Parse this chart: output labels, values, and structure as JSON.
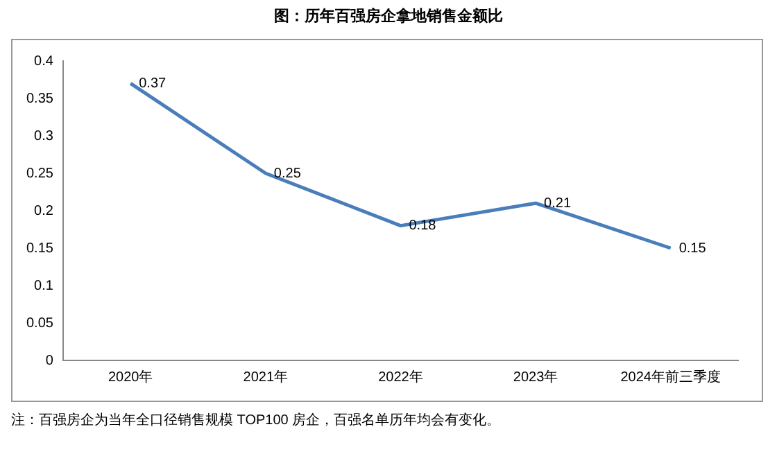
{
  "chart_data": {
    "type": "line",
    "title": "图：历年百强房企拿地销售金额比",
    "categories": [
      "2020年",
      "2021年",
      "2022年",
      "2023年",
      "2024年前三季度"
    ],
    "series": [
      {
        "color": "#4a7ebb",
        "values": [
          0.37,
          0.25,
          0.18,
          0.21,
          0.15
        ]
      }
    ],
    "ylim": [
      0,
      0.4
    ],
    "yticks": [
      0,
      0.05,
      0.1,
      0.15,
      0.2,
      0.25,
      0.3,
      0.35,
      0.4
    ],
    "grid": false,
    "legend": false,
    "marker": "none",
    "line_style": "solid",
    "data_labels": true,
    "annotations": [
      "注：百强房企为当年全口径销售规模 TOP100 房企，百强名单历年均会有变化。"
    ]
  }
}
